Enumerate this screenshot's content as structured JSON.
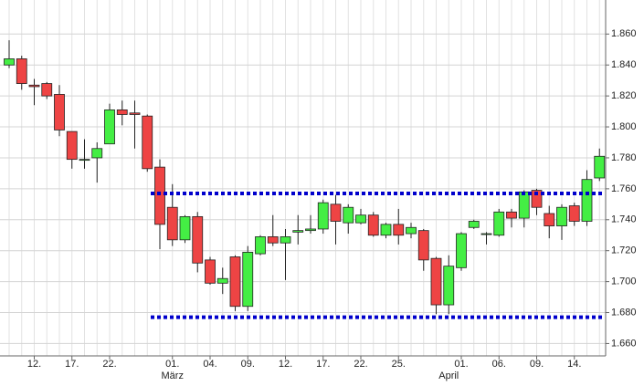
{
  "chart_data": {
    "type": "candlestick",
    "categories": [
      null,
      null,
      "12.",
      null,
      null,
      "17.",
      null,
      null,
      "22.",
      null,
      null,
      null,
      null,
      "01.",
      null,
      null,
      "04.",
      null,
      null,
      "09.",
      null,
      null,
      "12.",
      null,
      null,
      "17.",
      null,
      null,
      "22.",
      null,
      null,
      "25.",
      null,
      null,
      null,
      null,
      "01.",
      null,
      null,
      "06.",
      null,
      null,
      "09.",
      null,
      null,
      "14.",
      null,
      null
    ],
    "month_labels": [
      null,
      null,
      null,
      null,
      null,
      null,
      null,
      null,
      null,
      null,
      null,
      null,
      null,
      "März",
      null,
      null,
      null,
      null,
      null,
      null,
      null,
      null,
      null,
      null,
      null,
      null,
      null,
      null,
      null,
      null,
      null,
      null,
      null,
      null,
      null,
      "April",
      null,
      null,
      null,
      null,
      null,
      null,
      null,
      null,
      null,
      null,
      null,
      null
    ],
    "open": [
      1.84,
      1.844,
      1.827,
      1.828,
      1.821,
      1.797,
      1.779,
      1.78,
      1.789,
      1.811,
      1.809,
      1.807,
      1.774,
      1.748,
      1.727,
      1.742,
      1.714,
      1.699,
      1.716,
      1.684,
      1.718,
      1.729,
      1.725,
      1.732,
      1.733,
      1.734,
      1.75,
      1.738,
      1.738,
      1.743,
      1.73,
      1.737,
      1.731,
      1.733,
      1.715,
      1.685,
      1.709,
      1.735,
      1.731,
      1.73,
      1.745,
      1.741,
      1.759,
      1.744,
      1.736,
      1.749,
      1.739,
      1.767
    ],
    "high": [
      1.856,
      1.846,
      1.831,
      1.829,
      1.827,
      1.797,
      1.792,
      1.79,
      1.815,
      1.817,
      1.817,
      1.808,
      1.779,
      1.763,
      1.743,
      1.745,
      1.716,
      1.709,
      1.717,
      1.723,
      1.73,
      1.743,
      1.734,
      1.743,
      1.743,
      1.753,
      1.756,
      1.75,
      1.747,
      1.745,
      1.738,
      1.747,
      1.738,
      1.734,
      1.716,
      1.717,
      1.732,
      1.74,
      1.732,
      1.747,
      1.747,
      1.759,
      1.76,
      1.749,
      1.75,
      1.751,
      1.772,
      1.786
    ],
    "low": [
      1.838,
      1.824,
      1.814,
      1.818,
      1.794,
      1.773,
      1.773,
      1.764,
      1.789,
      1.801,
      1.786,
      1.771,
      1.721,
      1.723,
      1.725,
      1.706,
      1.698,
      1.692,
      1.681,
      1.681,
      1.717,
      1.723,
      1.701,
      1.724,
      1.731,
      1.731,
      1.724,
      1.731,
      1.737,
      1.729,
      1.728,
      1.724,
      1.728,
      1.707,
      1.679,
      1.679,
      1.707,
      1.734,
      1.724,
      1.729,
      1.735,
      1.735,
      1.743,
      1.728,
      1.727,
      1.736,
      1.736,
      1.765
    ],
    "close": [
      1.844,
      1.828,
      1.826,
      1.82,
      1.798,
      1.779,
      1.779,
      1.786,
      1.811,
      1.808,
      1.808,
      1.773,
      1.737,
      1.727,
      1.742,
      1.712,
      1.699,
      1.702,
      1.684,
      1.719,
      1.729,
      1.725,
      1.729,
      1.733,
      1.734,
      1.751,
      1.739,
      1.748,
      1.743,
      1.73,
      1.737,
      1.73,
      1.735,
      1.714,
      1.685,
      1.71,
      1.731,
      1.739,
      1.731,
      1.745,
      1.741,
      1.758,
      1.748,
      1.736,
      1.748,
      1.739,
      1.766,
      1.781
    ],
    "up_color": "#44ee44",
    "down_color": "#ee4444",
    "ylim": [
      1.652,
      1.882
    ],
    "yticks": [
      {
        "value": 1.66,
        "label": "1.660"
      },
      {
        "value": 1.68,
        "label": "1.680"
      },
      {
        "value": 1.7,
        "label": "1.700"
      },
      {
        "value": 1.72,
        "label": "1.720"
      },
      {
        "value": 1.74,
        "label": "1.740"
      },
      {
        "value": 1.76,
        "label": "1.760"
      },
      {
        "value": 1.78,
        "label": "1.780"
      },
      {
        "value": 1.8,
        "label": "1.800"
      },
      {
        "value": 1.82,
        "label": "1.820"
      },
      {
        "value": 1.84,
        "label": "1.840"
      },
      {
        "value": 1.86,
        "label": "1.860"
      }
    ],
    "grid": true,
    "reference_lines": [
      {
        "value": 1.757,
        "color": "#0000cc"
      },
      {
        "value": 1.677,
        "color": "#0000cc"
      }
    ]
  }
}
